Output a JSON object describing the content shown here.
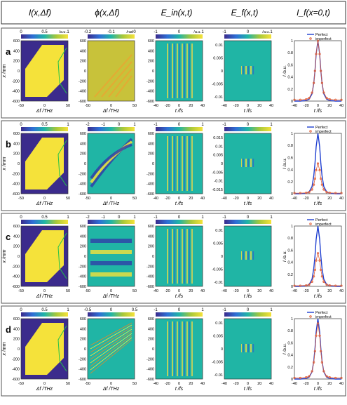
{
  "columns": [
    {
      "id": "intensity",
      "header": "I(x,Δf)"
    },
    {
      "id": "phase",
      "header": "ϕ(x,Δf)"
    },
    {
      "id": "ein",
      "header": "E_in(x,t)"
    },
    {
      "id": "ef",
      "header": "E_f(x,t)"
    },
    {
      "id": "profile",
      "header": "I_f(x=0,t)"
    }
  ],
  "rows": [
    {
      "label": "a",
      "cbars": {
        "intensity": {
          "ticks": [
            "0",
            "0.5",
            "1"
          ],
          "unit": "/a.u."
        },
        "phase": {
          "ticks": [
            "-0.2",
            "-0.1",
            "0"
          ],
          "unit": "/rad"
        },
        "ein": {
          "ticks": [
            "-1",
            "0",
            "1"
          ],
          "unit": "/a.u."
        },
        "ef": {
          "ticks": [
            "-1",
            "0",
            "1"
          ],
          "unit": "/a.u."
        }
      },
      "ef_yticks": [
        "0.01",
        "0.005",
        "0",
        "-0.005",
        "-0.01"
      ],
      "profile_imperfect_peak": 1.0
    },
    {
      "label": "b",
      "cbars": {
        "intensity": {
          "ticks": [
            "0",
            "0.5",
            "1"
          ],
          "unit": ""
        },
        "phase": {
          "ticks": [
            "-2",
            "-1",
            "0",
            "1"
          ],
          "unit": ""
        },
        "ein": {
          "ticks": [
            "-1",
            "0",
            "1"
          ],
          "unit": ""
        },
        "ef": {
          "ticks": [
            "-1",
            "0",
            "1"
          ],
          "unit": ""
        }
      },
      "ef_yticks": [
        "0.015",
        "0.01",
        "0.005",
        "0",
        "-0.005",
        "-0.01",
        "-0.015"
      ],
      "profile_imperfect_peak": 0.5
    },
    {
      "label": "c",
      "cbars": {
        "intensity": {
          "ticks": [
            "0",
            "0.5",
            "1"
          ],
          "unit": ""
        },
        "phase": {
          "ticks": [
            "-2",
            "-1",
            "0",
            "1"
          ],
          "unit": ""
        },
        "ein": {
          "ticks": [
            "-1",
            "0",
            "1"
          ],
          "unit": ""
        },
        "ef": {
          "ticks": [
            "-1",
            "0",
            "1"
          ],
          "unit": ""
        }
      },
      "ef_yticks": [
        "0.01",
        "0.005",
        "0",
        "-0.005",
        "-0.01"
      ],
      "profile_imperfect_peak": 0.55
    },
    {
      "label": "d",
      "cbars": {
        "intensity": {
          "ticks": [
            "0",
            "0.5",
            "1"
          ],
          "unit": ""
        },
        "phase": {
          "ticks": [
            "-0.5",
            "0",
            "0.5"
          ],
          "unit": ""
        },
        "ein": {
          "ticks": [
            "-1",
            "0",
            "1"
          ],
          "unit": ""
        },
        "ef": {
          "ticks": [
            "-1",
            "0",
            "1"
          ],
          "unit": ""
        }
      },
      "ef_yticks": [
        "0.01",
        "0.005",
        "0",
        "-0.005",
        "-0.01"
      ],
      "profile_imperfect_peak": 0.92
    }
  ],
  "axes": {
    "map_xlabel": "Δf /THz",
    "time_xlabel": "t /fs",
    "map_ylabel": "x /mm",
    "profile_ylabel": "I /a.u.",
    "map_xticks": [
      "-50",
      "0",
      "50"
    ],
    "map_yticks": [
      "600",
      "400",
      "200",
      "0",
      "-200",
      "-400",
      "-600"
    ],
    "time_xticks": [
      "-40",
      "-20",
      "0",
      "20",
      "40"
    ],
    "ein_yticks": [
      "600",
      "400",
      "200",
      "0",
      "-200",
      "-400",
      "-600"
    ],
    "profile_yticks": [
      "1",
      "0.8",
      "0.6",
      "0.4",
      "0.2",
      "0"
    ],
    "profile_xticks": [
      "-40",
      "-20",
      "0",
      "20",
      "40"
    ]
  },
  "legend": {
    "perfect": "Perfect",
    "imperfect": "imperfect"
  },
  "colors": {
    "perfect": "#1f3fd0",
    "imperfect": "#e0603a",
    "low": "#3b2b8c",
    "mid": "#20b5a5",
    "high": "#f5e23a"
  },
  "chart_data": {
    "type": "line",
    "x": [
      -40,
      -30,
      -20,
      -15,
      -10,
      -7,
      -5,
      -3,
      0,
      3,
      5,
      7,
      10,
      15,
      20,
      30,
      40
    ],
    "series": [
      {
        "name": "Perfect",
        "values": [
          0,
          0,
          0.01,
          0.03,
          0.12,
          0.3,
          0.5,
          0.78,
          1.0,
          0.78,
          0.5,
          0.3,
          0.12,
          0.03,
          0.01,
          0,
          0
        ]
      },
      {
        "name": "imperfect",
        "values": [
          0.02,
          0.02,
          0.03,
          0.05,
          0.14,
          0.3,
          0.5,
          0.78,
          1.0,
          0.78,
          0.5,
          0.3,
          0.14,
          0.05,
          0.03,
          0.02,
          0.02
        ]
      }
    ],
    "xlabel": "t /fs",
    "ylabel": "I /a.u.",
    "xlim": [
      -40,
      40
    ],
    "ylim": [
      0,
      1
    ]
  }
}
